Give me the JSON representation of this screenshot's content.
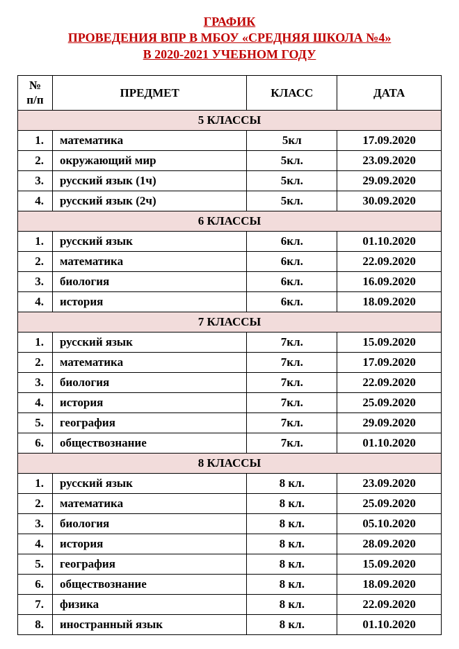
{
  "title": {
    "line1": "ГРАФИК",
    "line2": "ПРОВЕДЕНИЯ ВПР В МБОУ «СРЕДНЯЯ ШКОЛА №4»",
    "line3": "В 2020-2021 УЧЕБНОМ ГОДУ"
  },
  "headers": {
    "num": "№ п/п",
    "subject": "ПРЕДМЕТ",
    "klass": "КЛАСС",
    "date": "ДАТА"
  },
  "colors": {
    "title_color": "#c00000",
    "section_bg": "#f2dcdb",
    "border": "#000000",
    "text": "#000000",
    "background": "#ffffff"
  },
  "sections": [
    {
      "label": "5 КЛАССЫ",
      "rows": [
        {
          "num": "1.",
          "subject": "математика",
          "klass": "5кл",
          "date": "17.09.2020"
        },
        {
          "num": "2.",
          "subject": "окружающий мир",
          "klass": "5кл.",
          "date": "23.09.2020"
        },
        {
          "num": "3.",
          "subject": "русский язык (1ч)",
          "klass": "5кл.",
          "date": "29.09.2020"
        },
        {
          "num": "4.",
          "subject": "русский язык (2ч)",
          "klass": "5кл.",
          "date": "30.09.2020"
        }
      ]
    },
    {
      "label": "6 КЛАССЫ",
      "rows": [
        {
          "num": "1.",
          "subject": "русский язык",
          "klass": "6кл.",
          "date": "01.10.2020"
        },
        {
          "num": "2.",
          "subject": "математика",
          "klass": "6кл.",
          "date": "22.09.2020"
        },
        {
          "num": "3.",
          "subject": "биология",
          "klass": "6кл.",
          "date": "16.09.2020"
        },
        {
          "num": "4.",
          "subject": "история",
          "klass": "6кл.",
          "date": "18.09.2020"
        }
      ]
    },
    {
      "label": "7 КЛАССЫ",
      "rows": [
        {
          "num": "1.",
          "subject": "русский язык",
          "klass": "7кл.",
          "date": "15.09.2020"
        },
        {
          "num": "2.",
          "subject": "математика",
          "klass": "7кл.",
          "date": "17.09.2020"
        },
        {
          "num": "3.",
          "subject": "биология",
          "klass": "7кл.",
          "date": "22.09.2020"
        },
        {
          "num": "4.",
          "subject": "история",
          "klass": "7кл.",
          "date": "25.09.2020"
        },
        {
          "num": "5.",
          "subject": "география",
          "klass": "7кл.",
          "date": "29.09.2020"
        },
        {
          "num": "6.",
          "subject": "обществознание",
          "klass": "7кл.",
          "date": "01.10.2020"
        }
      ]
    },
    {
      "label": "8 КЛАССЫ",
      "rows": [
        {
          "num": "1.",
          "subject": "русский язык",
          "klass": "8 кл.",
          "date": "23.09.2020"
        },
        {
          "num": "2.",
          "subject": "математика",
          "klass": "8 кл.",
          "date": "25.09.2020"
        },
        {
          "num": "3.",
          "subject": "биология",
          "klass": "8 кл.",
          "date": "05.10.2020"
        },
        {
          "num": "4.",
          "subject": "история",
          "klass": "8 кл.",
          "date": "28.09.2020"
        },
        {
          "num": "5.",
          "subject": "география",
          "klass": "8 кл.",
          "date": "15.09.2020"
        },
        {
          "num": "6.",
          "subject": "обществознание",
          "klass": "8 кл.",
          "date": "18.09.2020"
        },
        {
          "num": "7.",
          "subject": "физика",
          "klass": "8 кл.",
          "date": "22.09.2020"
        },
        {
          "num": "8.",
          "subject": "иностранный язык",
          "klass": "8 кл.",
          "date": "01.10.2020"
        }
      ]
    }
  ]
}
